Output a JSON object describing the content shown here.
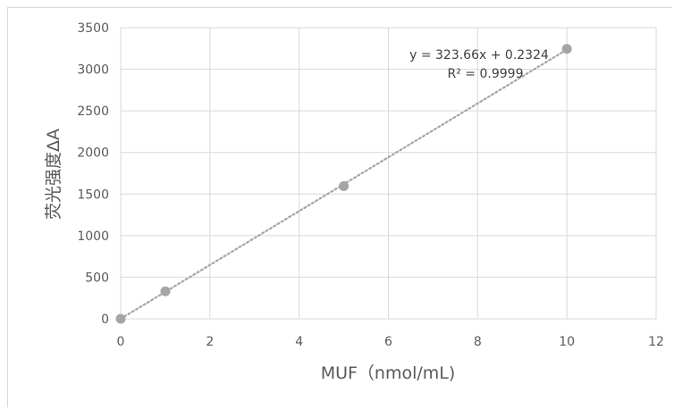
{
  "chart_data": {
    "type": "scatter",
    "title": "",
    "xlabel": "MUF（nmol/mL)",
    "ylabel": "荧光强度ΔA",
    "xlim": [
      0,
      12
    ],
    "ylim": [
      0,
      3500
    ],
    "x_ticks": [
      "0",
      "2",
      "4",
      "6",
      "8",
      "10",
      "12"
    ],
    "y_ticks": [
      "0",
      "500",
      "1000",
      "1500",
      "2000",
      "2500",
      "3000",
      "3500"
    ],
    "grid": true,
    "legend": "none",
    "series": [
      {
        "x": [
          0,
          1,
          5,
          10
        ],
        "y": [
          0,
          330,
          1595,
          3245
        ],
        "color": "#a5a5a5"
      }
    ],
    "trendline": {
      "type": "linear",
      "slope": 323.66,
      "intercept": 0.2324,
      "equation": "y = 323.66x + 0.2324",
      "r_squared": "R² = 0.9999",
      "color": "#a5a5a5",
      "style": "dotted"
    }
  }
}
